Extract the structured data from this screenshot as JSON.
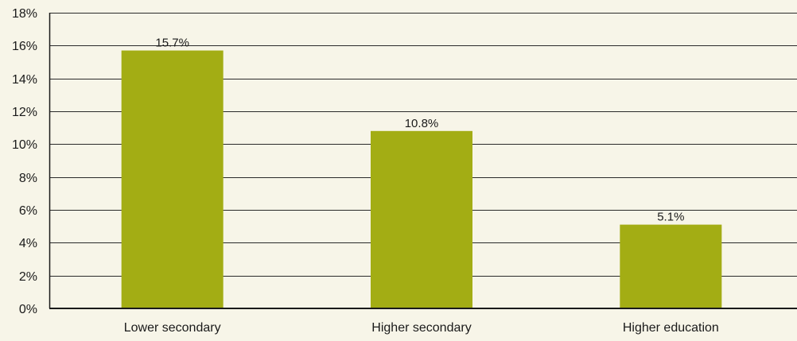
{
  "chart_data": {
    "type": "bar",
    "categories": [
      "Lower secondary",
      "Higher secondary",
      "Higher education"
    ],
    "values": [
      15.7,
      10.8,
      5.1
    ],
    "data_labels": [
      "15.7%",
      "10.8%",
      "5.1%"
    ],
    "title": "",
    "xlabel": "",
    "ylabel": "",
    "ylim": [
      0,
      18
    ],
    "yticks": [
      0,
      2,
      4,
      6,
      8,
      10,
      12,
      14,
      16,
      18
    ],
    "ytick_labels": [
      "0%",
      "2%",
      "4%",
      "6%",
      "8%",
      "10%",
      "12%",
      "14%",
      "16%",
      "18%"
    ],
    "grid": true,
    "legend": "none"
  },
  "colors": {
    "background": "#f7f5e8",
    "bar": "#a3ad14",
    "gridline": "#2a2a2a",
    "axis": "#1a1a1a"
  }
}
